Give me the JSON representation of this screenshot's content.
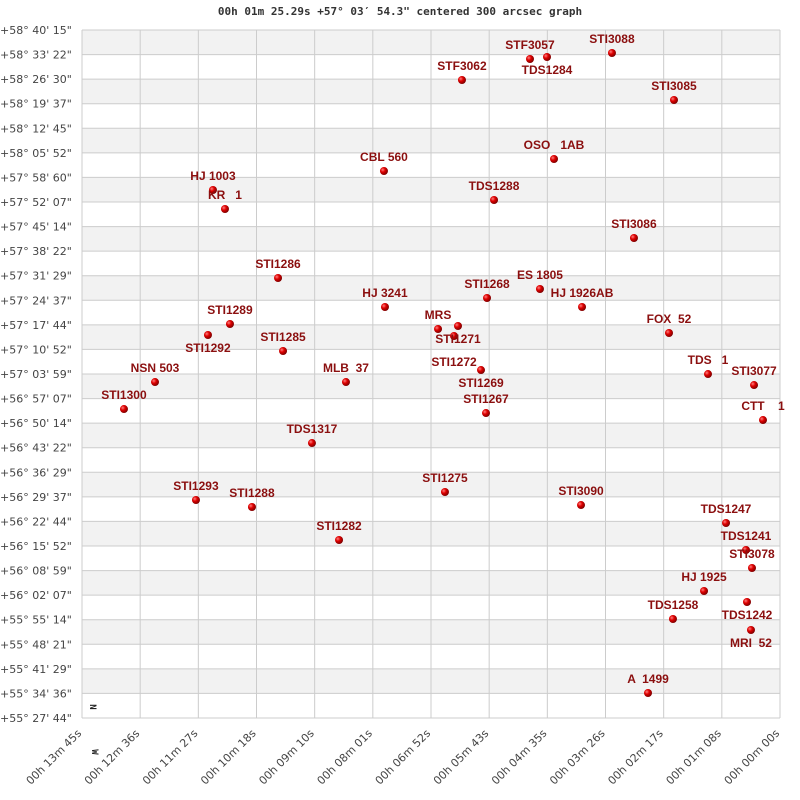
{
  "chart_data": {
    "type": "scatter",
    "title": "00h 01m 25.29s +57° 03′ 54.3\" centered 300 arcsec graph",
    "xlabel": "",
    "ylabel": "",
    "x_axis": "right ascension (seconds, decreasing to the right)",
    "xlim_seconds": [
      825,
      0
    ],
    "ylim_deg": [
      55.46222,
      58.67083
    ],
    "grid": true,
    "alternating_bands": true,
    "x_ticks": [
      "00h 13m 45s",
      "00h 12m 36s",
      "00h 11m 27s",
      "00h 10m 18s",
      "00h 09m 10s",
      "00h 08m 01s",
      "00h 06m 52s",
      "00h 05m 43s",
      "00h 04m 35s",
      "00h 03m 26s",
      "00h 02m 17s",
      "00h 01m 08s",
      "00h 00m 00s"
    ],
    "y_ticks": [
      "+58° 40' 15\"",
      "+58° 33' 22\"",
      "+58° 26' 30\"",
      "+58° 19' 37\"",
      "+58° 12' 45\"",
      "+58° 05' 52\"",
      "+57° 58' 60\"",
      "+57° 52' 07\"",
      "+57° 45' 14\"",
      "+57° 38' 22\"",
      "+57° 31' 29\"",
      "+57° 24' 37\"",
      "+57° 17' 44\"",
      "+57° 10' 52\"",
      "+57° 03' 59\"",
      "+56° 57' 07\"",
      "+56° 50' 14\"",
      "+56° 43' 22\"",
      "+56° 36' 29\"",
      "+56° 29' 37\"",
      "+56° 22' 44\"",
      "+56° 15' 52\"",
      "+56° 08' 59\"",
      "+56° 02' 07\"",
      "+55° 55' 14\"",
      "+55° 48' 21\"",
      "+55° 41' 29\"",
      "+55° 34' 36\"",
      "+55° 27' 44\""
    ],
    "compass": {
      "north": "N",
      "west": "W"
    },
    "colors": {
      "point": "#dd0000",
      "label": "#8b0f0f",
      "band": "#f2f2f2",
      "grid": "#cccccc"
    },
    "points": [
      {
        "name": "STF3057",
        "ra_s": 295.5,
        "dec": 58.5356
      },
      {
        "name": "TDS1284",
        "ra_s": 275.4,
        "dec": 58.5449
      },
      {
        "name": "STI3088",
        "ra_s": 198.6,
        "dec": 58.5636
      },
      {
        "name": "STF3062",
        "ra_s": 375.9,
        "dec": 58.4376
      },
      {
        "name": "STI3085",
        "ra_s": 125.3,
        "dec": 58.3444
      },
      {
        "name": "OSO   1AB",
        "ra_s": 267.1,
        "dec": 58.0692
      },
      {
        "name": "CBL 560",
        "ra_s": 468.1,
        "dec": 58.0133
      },
      {
        "name": "HJ 1003",
        "ra_s": 670.2,
        "dec": 57.9247
      },
      {
        "name": "KR   1",
        "ra_s": 656.0,
        "dec": 57.836
      },
      {
        "name": "TDS1288",
        "ra_s": 338.0,
        "dec": 57.878
      },
      {
        "name": "STI3086",
        "ra_s": 172.6,
        "dec": 57.7008
      },
      {
        "name": "STI1286",
        "ra_s": 593.3,
        "dec": 57.5142
      },
      {
        "name": "HJ 3241",
        "ra_s": 466.9,
        "dec": 57.379
      },
      {
        "name": "STI1268",
        "ra_s": 346.3,
        "dec": 57.421
      },
      {
        "name": "ES 1805",
        "ra_s": 283.7,
        "dec": 57.463
      },
      {
        "name": "HJ 1926AB",
        "ra_s": 234.0,
        "dec": 57.379
      },
      {
        "name": "STI1289",
        "ra_s": 650.1,
        "dec": 57.2997
      },
      {
        "name": "STI1292",
        "ra_s": 676.1,
        "dec": 57.2484
      },
      {
        "name": "MRS",
        "ra_s": 404.2,
        "dec": 57.2764
      },
      {
        "name": "STI1271",
        "ra_s": 380.6,
        "dec": 57.2904
      },
      {
        "name": "STI1272",
        "ra_s": 385.3,
        "dec": 57.2437
      },
      {
        "name": "STI1285",
        "ra_s": 587.4,
        "dec": 57.1738
      },
      {
        "name": "FOX  52",
        "ra_s": 131.2,
        "dec": 57.2577
      },
      {
        "name": "NSN 503",
        "ra_s": 738.7,
        "dec": 57.0291
      },
      {
        "name": "MLB  37",
        "ra_s": 513.0,
        "dec": 57.0291
      },
      {
        "name": "STI1269",
        "ra_s": 353.4,
        "dec": 57.0851
      },
      {
        "name": "TDS   1",
        "ra_s": 85.1,
        "dec": 57.0664
      },
      {
        "name": "STI3077",
        "ra_s": 30.7,
        "dec": 57.0151
      },
      {
        "name": "STI1300",
        "ra_s": 775.4,
        "dec": 56.9032
      },
      {
        "name": "CTT    1",
        "ra_s": 20.1,
        "dec": 56.8519
      },
      {
        "name": "STI1267",
        "ra_s": 347.5,
        "dec": 56.8845
      },
      {
        "name": "TDS1317",
        "ra_s": 553.2,
        "dec": 56.7446
      },
      {
        "name": "STI1275",
        "ra_s": 396.0,
        "dec": 56.5162
      },
      {
        "name": "STI3090",
        "ra_s": 235.2,
        "dec": 56.4555
      },
      {
        "name": "STI1293",
        "ra_s": 690.3,
        "dec": 56.4789
      },
      {
        "name": "STI1288",
        "ra_s": 624.1,
        "dec": 56.4462
      },
      {
        "name": "STI1282",
        "ra_s": 521.2,
        "dec": 56.2924
      },
      {
        "name": "TDS1247",
        "ra_s": 63.8,
        "dec": 56.3716
      },
      {
        "name": "TDS1241",
        "ra_s": 40.2,
        "dec": 56.2457
      },
      {
        "name": "STI3078",
        "ra_s": 33.1,
        "dec": 56.1617
      },
      {
        "name": "HJ 1925",
        "ra_s": 89.8,
        "dec": 56.0545
      },
      {
        "name": "TDS1242",
        "ra_s": 39.0,
        "dec": 56.0032
      },
      {
        "name": "TDS1258",
        "ra_s": 126.5,
        "dec": 55.9239
      },
      {
        "name": "MRI  52",
        "ra_s": 34.3,
        "dec": 55.8726
      },
      {
        "name": "A  1499",
        "ra_s": 156.0,
        "dec": 55.5788
      }
    ]
  }
}
